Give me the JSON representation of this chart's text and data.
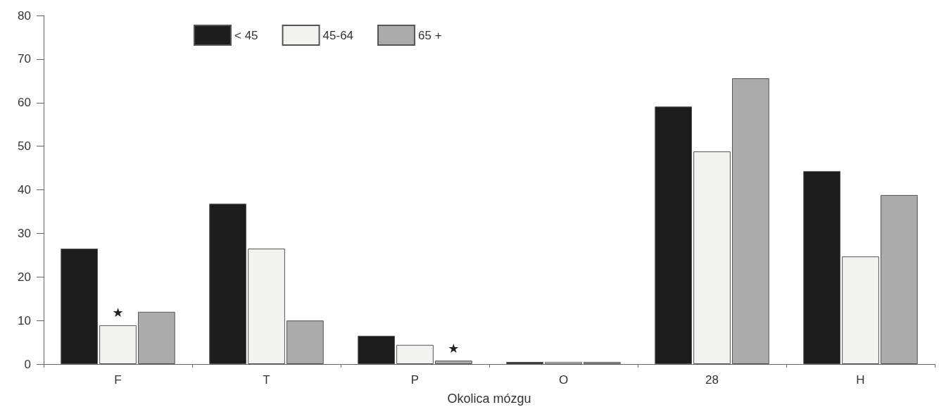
{
  "chart_data": {
    "type": "bar",
    "xlabel": "Okolica mózgu",
    "categories": [
      "F",
      "T",
      "P",
      "O",
      "28",
      "H"
    ],
    "series": [
      {
        "name": "< 45",
        "color": "#1c1c1c",
        "values": [
          26.5,
          36.8,
          6.5,
          0.5,
          59.1,
          44.3
        ]
      },
      {
        "name": "45-64",
        "color": "#f2f2f0",
        "values": [
          8.9,
          26.5,
          4.4,
          0.5,
          48.8,
          24.7
        ]
      },
      {
        "name": "65 +",
        "color": "#ababab",
        "values": [
          12.0,
          10.0,
          0.8,
          0.5,
          65.6,
          38.8
        ]
      }
    ],
    "ylim": [
      0,
      80
    ],
    "yticks": [
      0,
      10,
      20,
      30,
      40,
      50,
      60,
      70,
      80
    ],
    "grid": false,
    "legend": "top left",
    "annotations": [
      {
        "text": "★",
        "x": "F",
        "y": 8.9
      },
      {
        "text": "★",
        "x": "P",
        "y": 0.8
      }
    ]
  }
}
